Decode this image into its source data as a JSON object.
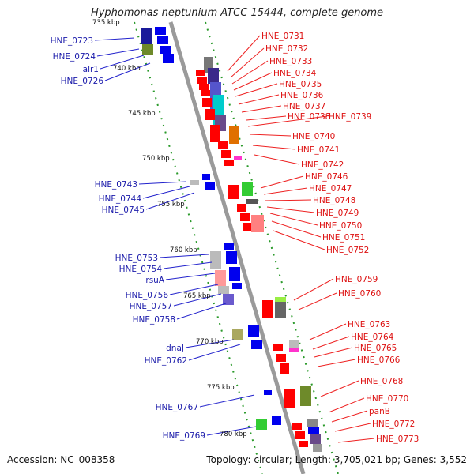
{
  "title": "Hyphomonas neptunium ATCC 15444, complete genome",
  "accession": "Accession: NC_008358",
  "topology": "Topology: circular; Length: 3,705,021 bp; Genes: 3,552",
  "colors": {
    "forward": "#ff0000",
    "reverse": "#0000ff",
    "backbone": "#808080",
    "track": "#009900"
  },
  "kbp_marks": [
    "735 kbp",
    "740 kbp",
    "745 kbp",
    "750 kbp",
    "755 kbp",
    "760 kbp",
    "765 kbp",
    "770 kbp",
    "775 kbp",
    "780 kbp"
  ],
  "left_labels": [
    "HNE_0723",
    "HNE_0724",
    "alr1",
    "HNE_0726",
    "HNE_0743",
    "HNE_0744",
    "HNE_0745",
    "HNE_0753",
    "HNE_0754",
    "rsuA",
    "HNE_0756",
    "HNE_0757",
    "HNE_0758",
    "dnaJ",
    "HNE_0762",
    "HNE_0767",
    "HNE_0769"
  ],
  "right_labels": [
    "HNE_0731",
    "HNE_0732",
    "HNE_0733",
    "HNE_0734",
    "HNE_0735",
    "HNE_0736",
    "HNE_0737",
    "HNE_0738",
    "HNE_0739",
    "HNE_0740",
    "HNE_0741",
    "HNE_0742",
    "HNE_0746",
    "HNE_0747",
    "HNE_0748",
    "HNE_0749",
    "HNE_0750",
    "HNE_0751",
    "HNE_0752",
    "HNE_0759",
    "HNE_0760",
    "HNE_0763",
    "HNE_0764",
    "HNE_0765",
    "HNE_0766",
    "HNE_0768",
    "HNE_0770",
    "panB",
    "HNE_0772",
    "HNE_0773"
  ]
}
